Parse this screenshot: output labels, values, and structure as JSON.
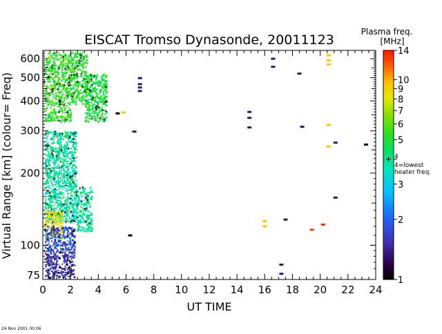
{
  "chart_data": {
    "type": "heatmap",
    "title": "EISCAT Tromso Dynasonde,  20011123",
    "xlabel": "UT TIME",
    "ylabel": "Virtual Range [km]   (colour= Freq)",
    "x_ticks": [
      0,
      2,
      4,
      6,
      8,
      10,
      12,
      14,
      16,
      18,
      20,
      22,
      24
    ],
    "xlim": [
      0,
      24
    ],
    "y_scale": "log",
    "ylim": [
      72,
      650
    ],
    "y_ticks": [
      75,
      100,
      200,
      300,
      400,
      500,
      600
    ],
    "colorbar": {
      "title_line1": "Plasma freq.",
      "title_line2": "[MHz]",
      "scale": "log",
      "range": [
        1,
        14
      ],
      "ticks": [
        1,
        2,
        3,
        4,
        5,
        6,
        7,
        8,
        9,
        10,
        14
      ],
      "annotation_line1": "4=lowest",
      "annotation_line2": "heater freq.",
      "annotation_marker_value": 4
    },
    "dense_regions": [
      {
        "x_range": [
          0.1,
          2.0
        ],
        "y_range": [
          330,
          640
        ],
        "freq_range": [
          4.5,
          6.5
        ]
      },
      {
        "x_range": [
          2.0,
          3.2
        ],
        "y_range": [
          390,
          640
        ],
        "freq_range": [
          4.5,
          6.0
        ]
      },
      {
        "x_range": [
          3.0,
          4.6
        ],
        "y_range": [
          330,
          520
        ],
        "freq_range": [
          4.2,
          5.8
        ]
      },
      {
        "x_range": [
          0.1,
          2.4
        ],
        "y_range": [
          125,
          300
        ],
        "freq_range": [
          3.0,
          4.8
        ]
      },
      {
        "x_range": [
          2.4,
          3.5
        ],
        "y_range": [
          115,
          175
        ],
        "freq_range": [
          3.2,
          4.6
        ]
      },
      {
        "x_range": [
          0.1,
          1.4
        ],
        "y_range": [
          108,
          140
        ],
        "freq_range": [
          7.0,
          10.0
        ]
      },
      {
        "x_range": [
          0.1,
          2.3
        ],
        "y_range": [
          95,
          120
        ],
        "freq_range": [
          1.5,
          2.3
        ]
      },
      {
        "x_range": [
          0.1,
          2.3
        ],
        "y_range": [
          73,
          95
        ],
        "freq_range": [
          1.3,
          1.8
        ]
      }
    ],
    "sparse_points": [
      {
        "x": 5.4,
        "y": 355,
        "freq": 1.05
      },
      {
        "x": 5.8,
        "y": 358,
        "freq": 9.5
      },
      {
        "x": 6.6,
        "y": 298,
        "freq": 1.3
      },
      {
        "x": 7.0,
        "y": 498,
        "freq": 1.3
      },
      {
        "x": 7.0,
        "y": 470,
        "freq": 1.3
      },
      {
        "x": 7.0,
        "y": 455,
        "freq": 1.3
      },
      {
        "x": 7.0,
        "y": 440,
        "freq": 1.3
      },
      {
        "x": 6.3,
        "y": 110,
        "freq": 1.05
      },
      {
        "x": 14.9,
        "y": 360,
        "freq": 1.3
      },
      {
        "x": 14.9,
        "y": 340,
        "freq": 1.3
      },
      {
        "x": 14.9,
        "y": 310,
        "freq": 1.3
      },
      {
        "x": 16.0,
        "y": 126,
        "freq": 9.5
      },
      {
        "x": 16.0,
        "y": 120,
        "freq": 9.5
      },
      {
        "x": 16.6,
        "y": 600,
        "freq": 1.3
      },
      {
        "x": 16.6,
        "y": 555,
        "freq": 1.3
      },
      {
        "x": 17.5,
        "y": 128,
        "freq": 1.3
      },
      {
        "x": 17.2,
        "y": 83,
        "freq": 1.3
      },
      {
        "x": 17.2,
        "y": 76,
        "freq": 1.3
      },
      {
        "x": 18.5,
        "y": 520,
        "freq": 1.3
      },
      {
        "x": 18.7,
        "y": 312,
        "freq": 1.3
      },
      {
        "x": 19.4,
        "y": 116,
        "freq": 13.0
      },
      {
        "x": 20.2,
        "y": 122,
        "freq": 13.5
      },
      {
        "x": 20.6,
        "y": 620,
        "freq": 9.5
      },
      {
        "x": 20.6,
        "y": 590,
        "freq": 9.5
      },
      {
        "x": 20.6,
        "y": 568,
        "freq": 9.5
      },
      {
        "x": 20.6,
        "y": 318,
        "freq": 9.5
      },
      {
        "x": 20.6,
        "y": 258,
        "freq": 9.5
      },
      {
        "x": 21.1,
        "y": 268,
        "freq": 1.3
      },
      {
        "x": 21.1,
        "y": 158,
        "freq": 1.3
      },
      {
        "x": 23.3,
        "y": 263,
        "freq": 1.05
      }
    ]
  },
  "footer": {
    "timestamp": "24 Nov 2001  00:06"
  },
  "colors": {
    "background": "#ffffff",
    "axis": "#000000",
    "marker": "#000000"
  }
}
